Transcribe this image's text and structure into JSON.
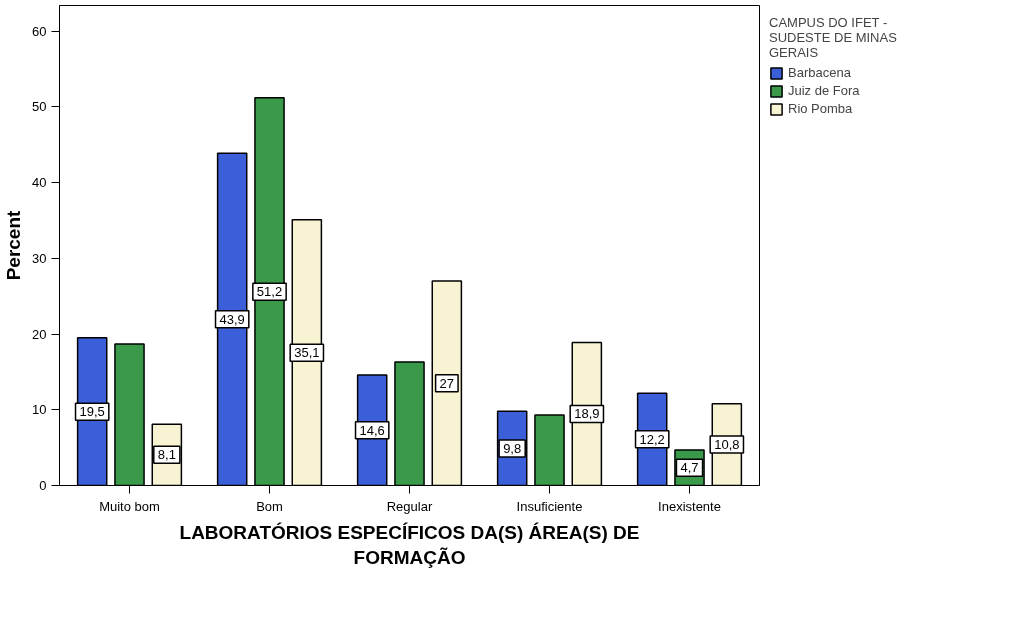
{
  "chart_data": {
    "type": "bar",
    "xlabel": "LABORATÓRIOS ESPECÍFICOS DA(S) ÁREA(S) DE FORMAÇÃO",
    "ylabel": "Percent",
    "legend_title": "CAMPUS DO IFET - SUDESTE DE MINAS GERAIS",
    "categories": [
      "Muito bom",
      "Bom",
      "Regular",
      "Insuficiente",
      "Inexistente"
    ],
    "series": [
      {
        "name": "Barbacena",
        "color": "#3b5fd8",
        "values": [
          19.5,
          43.9,
          14.6,
          9.8,
          12.2
        ],
        "value_labels": [
          "19,5",
          "43,9",
          "14,6",
          "9,8",
          "12,2"
        ]
      },
      {
        "name": "Juiz de Fora",
        "color": "#3a9a4a",
        "values": [
          18.7,
          51.2,
          16.3,
          9.3,
          4.7
        ],
        "value_labels": [
          null,
          "51,2",
          null,
          null,
          "4,7"
        ]
      },
      {
        "name": "Rio Pomba",
        "color": "#f8f3d2",
        "values": [
          8.1,
          35.1,
          27,
          18.9,
          10.8
        ],
        "value_labels": [
          "8,1",
          "35,1",
          "27",
          "18,9",
          "10,8"
        ]
      }
    ],
    "ylim": [
      0,
      63.4
    ],
    "yticks": [
      0,
      10,
      20,
      30,
      40,
      50,
      60
    ],
    "grid": false,
    "legend": "right"
  }
}
